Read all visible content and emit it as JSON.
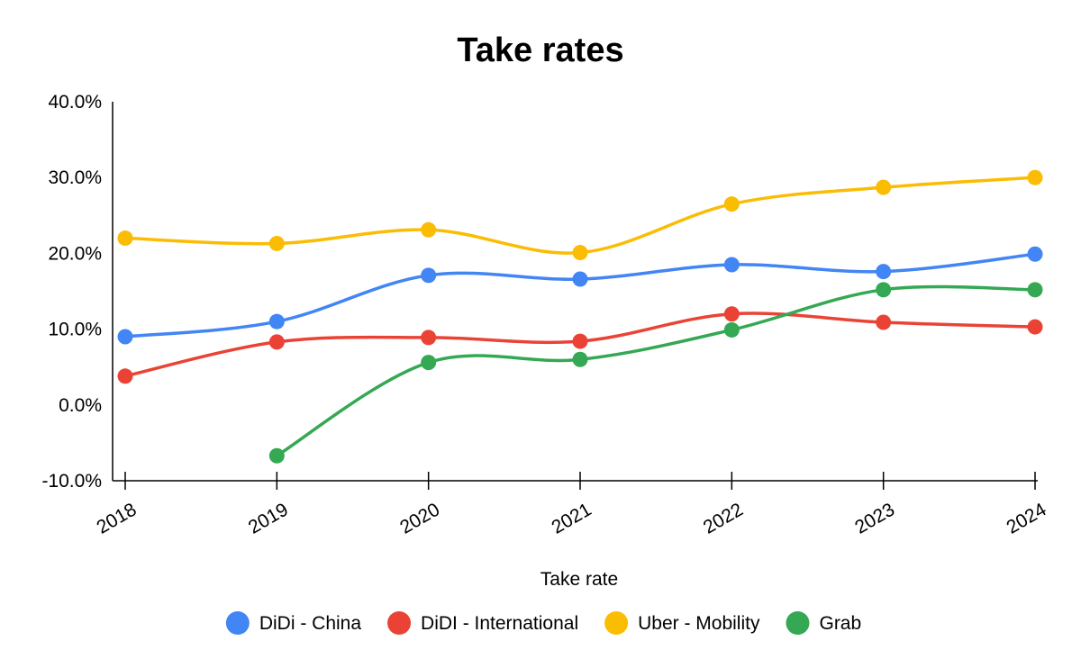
{
  "chart_data": {
    "type": "line",
    "title": "Take rates",
    "xlabel": "Take rate",
    "ylabel": "",
    "categories": [
      "2018",
      "2019",
      "2020",
      "2021",
      "2022",
      "2023",
      "2024"
    ],
    "ylim": [
      -0.1,
      0.4
    ],
    "yticks": [
      -0.1,
      0.0,
      0.1,
      0.2,
      0.3,
      0.4
    ],
    "ytick_labels": [
      "-10.0%",
      "0.0%",
      "10.0%",
      "20.0%",
      "30.0%",
      "40.0%"
    ],
    "grid": false,
    "legend_position": "bottom",
    "series": [
      {
        "name": "DiDi - China",
        "color": "#4285F4",
        "values": [
          0.09,
          0.11,
          0.171,
          0.166,
          0.185,
          0.176,
          0.199
        ]
      },
      {
        "name": "DiDI - International",
        "color": "#EA4335",
        "values": [
          0.038,
          0.083,
          0.089,
          0.084,
          0.12,
          0.109,
          0.103
        ]
      },
      {
        "name": "Uber - Mobility",
        "color": "#FBBC04",
        "values": [
          0.22,
          0.213,
          0.231,
          0.201,
          0.265,
          0.287,
          0.3
        ]
      },
      {
        "name": "Grab",
        "color": "#34A853",
        "values": [
          null,
          -0.067,
          0.056,
          0.06,
          0.099,
          0.152,
          0.152
        ]
      }
    ]
  }
}
